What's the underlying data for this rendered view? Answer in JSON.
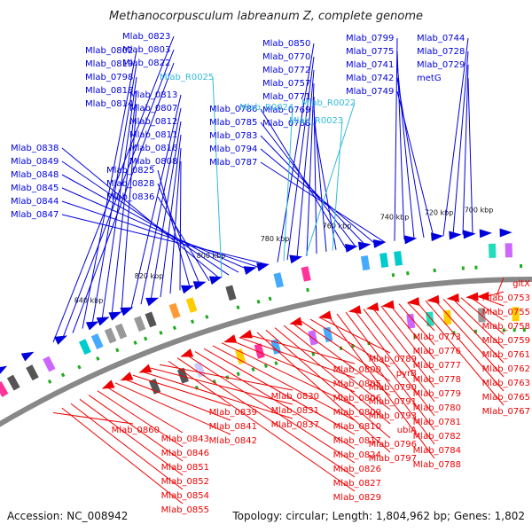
{
  "title": "Methanocorpusculum labreanum Z, complete genome",
  "accession_text": "Accession: NC_008942",
  "topology_text": "Topology: circular; Length: 1,804,962 bp; Genes: 1,802",
  "colors": {
    "forward": "#0000dd",
    "reverse": "#ee0000",
    "rna": "#33bbdd",
    "backbone": "#888888"
  },
  "kbp_labels": [
    "700 kbp",
    "720 kbp",
    "740 kbp",
    "760 kbp",
    "780 kbp",
    "800 kbp",
    "820 kbp",
    "840 kbp"
  ],
  "forward_labels": [
    "Mlab_0823",
    "Mlab_0803",
    "Mlab_0822",
    "Mlab_0802",
    "Mlab_0819",
    "Mlab_0798",
    "Mlab_0818",
    "Mlab_0814",
    "Mlab_0813",
    "Mlab_0807",
    "Mlab_0812",
    "Mlab_0811",
    "Mlab_0816",
    "Mlab_0808",
    "Mlab_0825",
    "Mlab_0828",
    "Mlab_0836",
    "Mlab_0838",
    "Mlab_0849",
    "Mlab_0848",
    "Mlab_0845",
    "Mlab_0844",
    "Mlab_0847",
    "Mlab_0850",
    "Mlab_0770",
    "Mlab_0772",
    "Mlab_0757",
    "Mlab_0771",
    "Mlab_0769",
    "Mlab_0768",
    "Mlab_0786",
    "Mlab_0785",
    "Mlab_0783",
    "Mlab_0794",
    "Mlab_0787",
    "Mlab_0799",
    "Mlab_0775",
    "Mlab_0741",
    "Mlab_0742",
    "Mlab_0749",
    "Mlab_0744",
    "Mlab_0728",
    "Mlab_0729",
    "metG"
  ],
  "rna_labels": [
    "Mlab_R0025",
    "Mlab_R0024",
    "Mlab_R0022",
    "Mlab_R0023"
  ],
  "reverse_labels": [
    "gltX",
    "Mlab_0753",
    "Mlab_0755",
    "Mlab_0758",
    "Mlab_0759",
    "Mlab_0761",
    "Mlab_0762",
    "Mlab_0763",
    "Mlab_0765",
    "Mlab_0767",
    "Mlab_0773",
    "Mlab_0776",
    "Mlab_0777",
    "Mlab_0778",
    "Mlab_0779",
    "Mlab_0780",
    "Mlab_0781",
    "Mlab_0782",
    "Mlab_0784",
    "Mlab_0788",
    "Mlab_0789",
    "pyrB",
    "Mlab_0790",
    "Mlab_0791",
    "Mlab_0793",
    "ubiA",
    "Mlab_0796",
    "Mlab_0797",
    "Mlab_0800",
    "Mlab_0805",
    "Mlab_0806",
    "Mlab_0809",
    "Mlab_0810",
    "Mlab_0817",
    "Mlab_0824",
    "Mlab_0826",
    "Mlab_0827",
    "Mlab_0829",
    "Mlab_0830",
    "Mlab_0831",
    "Mlab_0837",
    "Mlab_0839",
    "Mlab_0841",
    "Mlab_0842",
    "Mlab_0843",
    "Mlab_0846",
    "Mlab_0851",
    "Mlab_0852",
    "Mlab_0854",
    "Mlab_0855",
    "Mlab_0860"
  ]
}
